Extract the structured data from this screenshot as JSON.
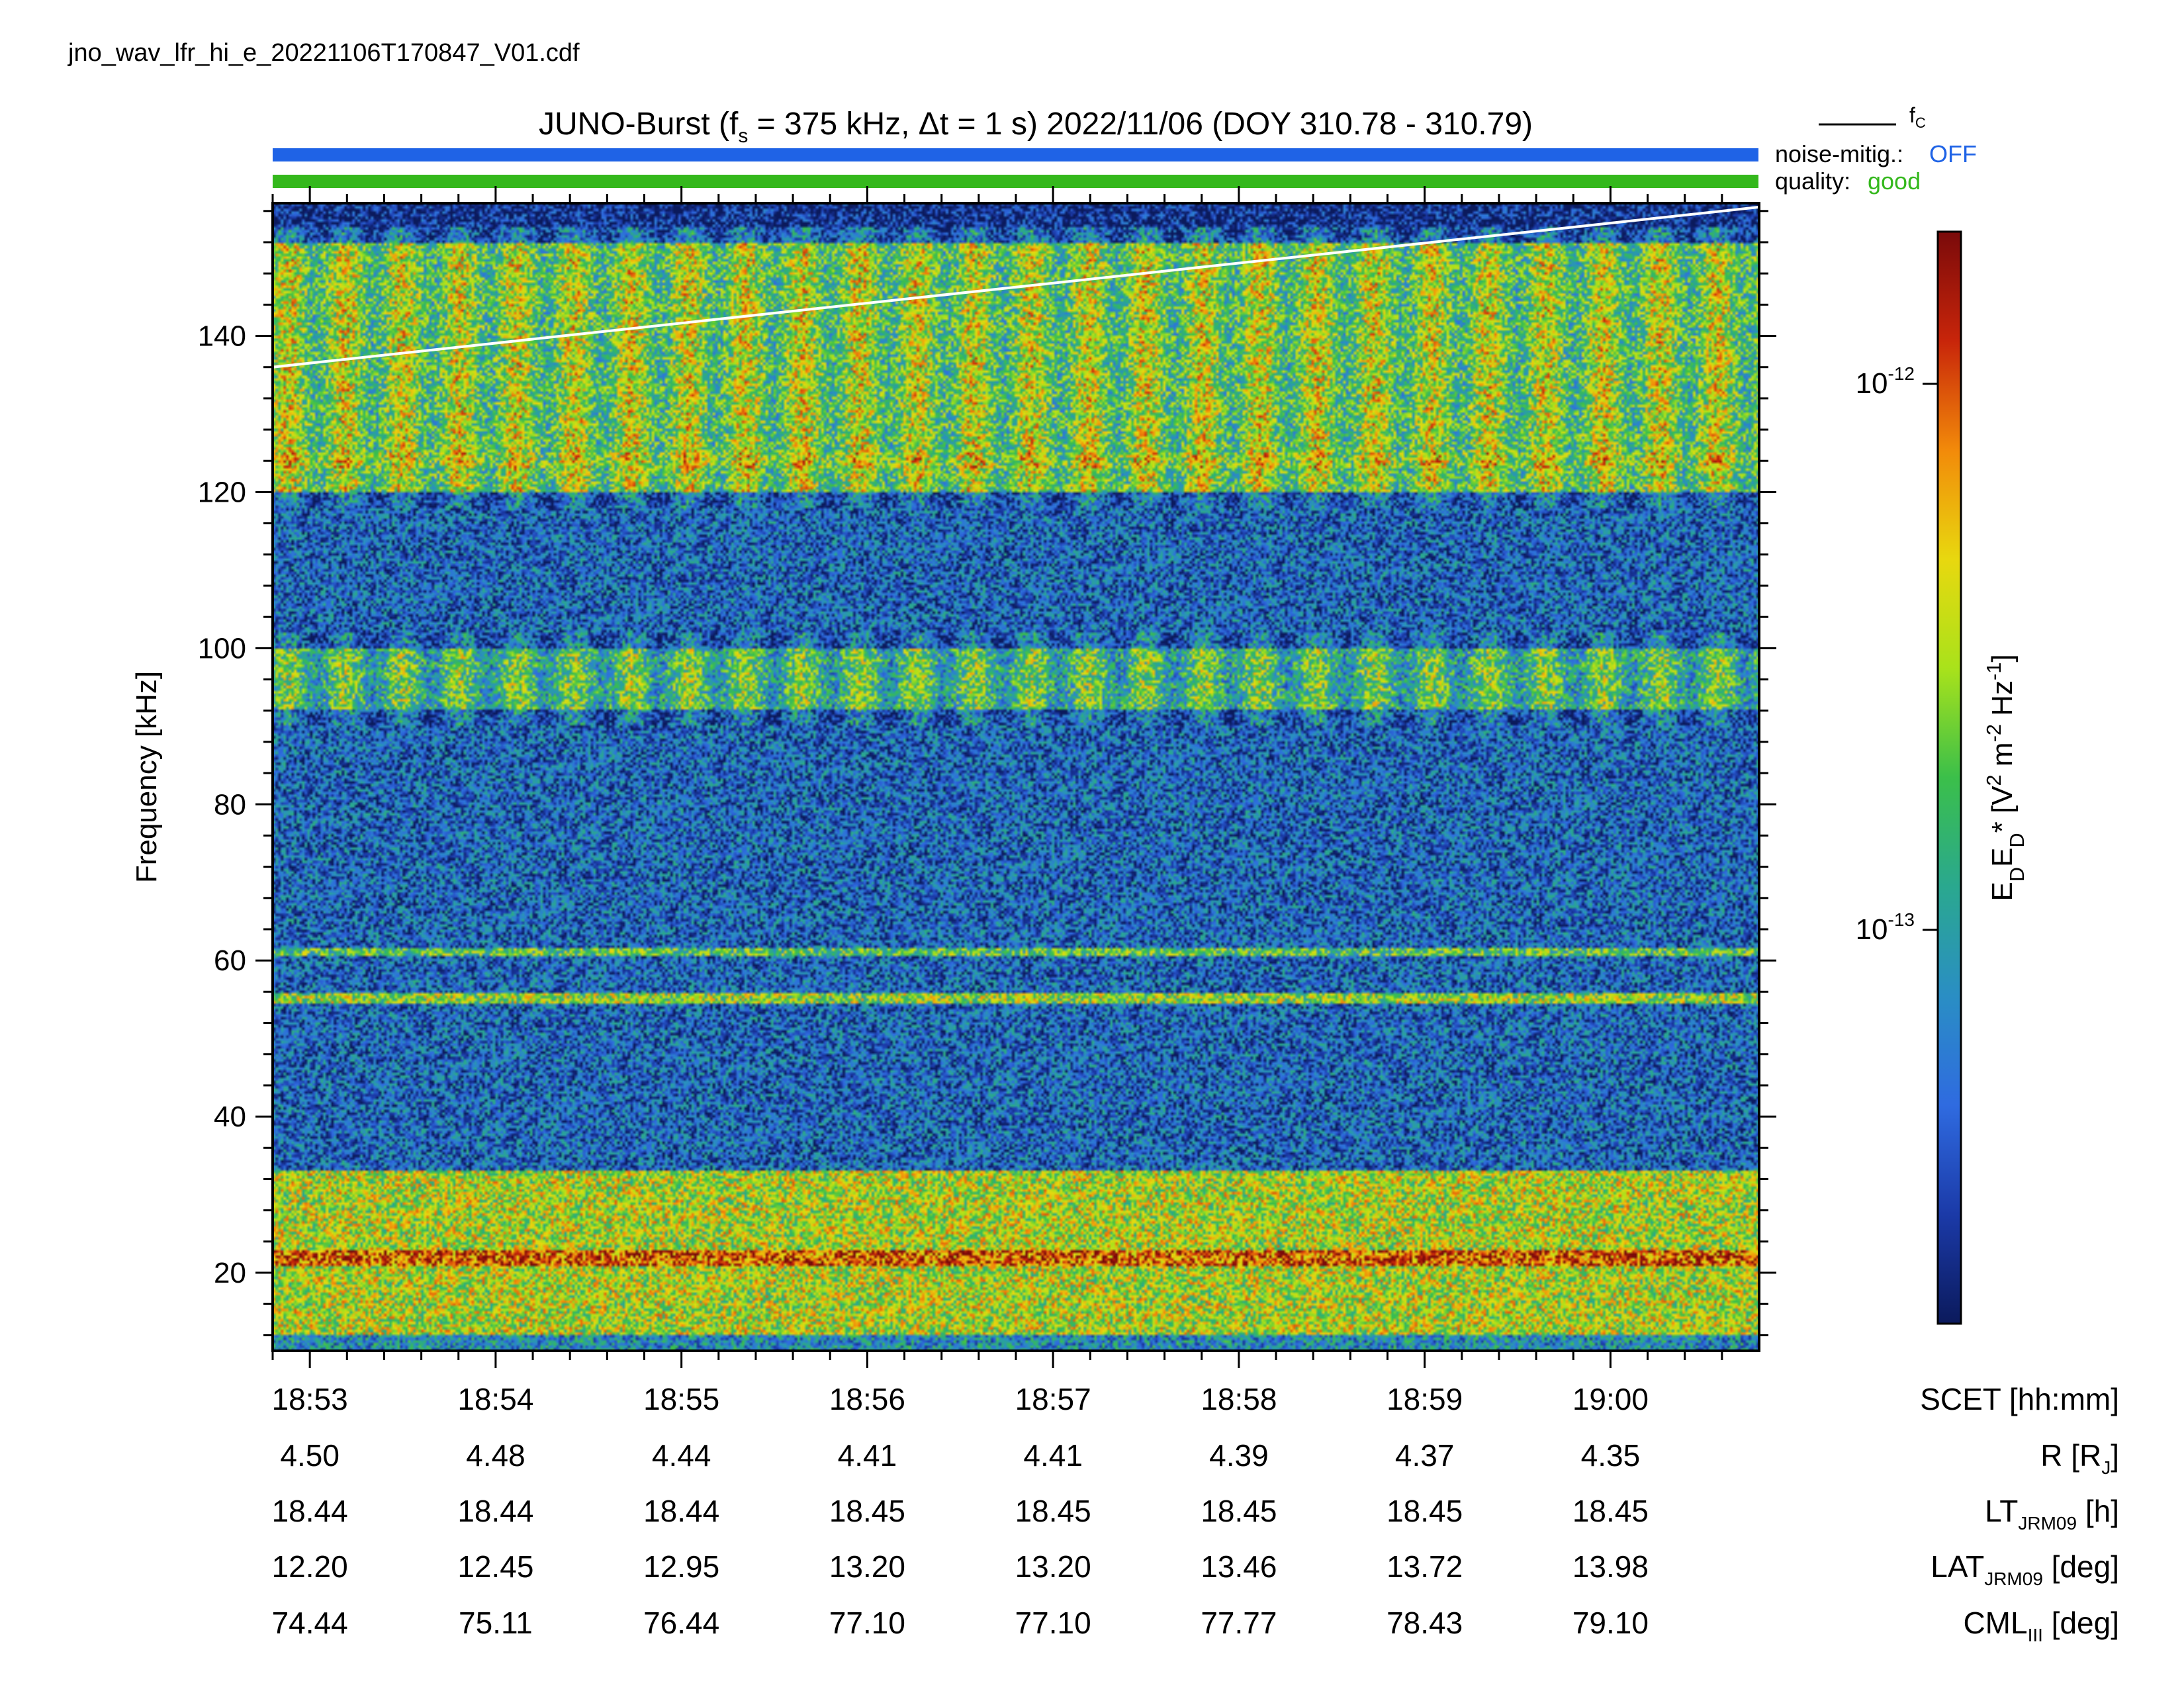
{
  "file_label": "jno_wav_lfr_hi_e_20221106T170847_V01.cdf",
  "chart_data": {
    "type": "heatmap",
    "title": {
      "prefix": "JUNO-Burst (f",
      "sub": "s",
      "middle": " = 375 kHz, Δt = 1 s)  2022/11/06 (DOY 310.78 - 310.79)"
    },
    "ylabel": "Frequency [kHz]",
    "ylim": [
      10,
      157
    ],
    "y_ticks": [
      "20",
      "40",
      "60",
      "80",
      "100",
      "120",
      "140"
    ],
    "y_tick_values": [
      20,
      40,
      60,
      80,
      100,
      120,
      140
    ],
    "x_range_minutes": [
      -0.2,
      7.8
    ],
    "x_ticks": [
      "18:53",
      "18:54",
      "18:55",
      "18:56",
      "18:57",
      "18:58",
      "18:59",
      "19:00"
    ],
    "x_tick_minutes": [
      0,
      1,
      2,
      3,
      4,
      5,
      6,
      7
    ],
    "fc_line": {
      "legend": "f",
      "legend_sub": "C",
      "color": "#ffffff",
      "points": [
        [
          -0.2,
          136.0
        ],
        [
          7.8,
          156.5
        ]
      ]
    },
    "status_bars": [
      {
        "label": "noise-mitig.:",
        "value": "OFF",
        "color": "#1f63e6"
      },
      {
        "label": "quality:",
        "value": "good",
        "color": "#34b81c"
      }
    ],
    "colorbar": {
      "label_html": "E<tspan baseline-shift='sub' font-size='70%'>D</tspan>E<tspan baseline-shift='sub' font-size='70%'>D</tspan>* [V<tspan baseline-shift='super' font-size='70%'>2</tspan> m<tspan baseline-shift='super' font-size='70%'>-2</tspan> Hz<tspan baseline-shift='super' font-size='70%'>-1</tspan>]",
      "label_text": "E_D E_D* [V2 m-2 Hz-1]",
      "scale": "log",
      "range": [
        1.9e-14,
        1.9e-12
      ],
      "ticks": [
        {
          "base": "10",
          "exp": "-12",
          "value": 1e-12
        },
        {
          "base": "10",
          "exp": "-13",
          "value": 1e-13
        }
      ],
      "colors": [
        "#0b1a5c",
        "#1b3aa8",
        "#2f6be0",
        "#2a8ec4",
        "#2aa88f",
        "#3bbf4a",
        "#a9e21b",
        "#e8d80f",
        "#f28a0a",
        "#c8250a",
        "#7a0a0a"
      ]
    },
    "ephemeris": {
      "rows": [
        {
          "label": "SCET [hh:mm]",
          "values": [
            "18:53",
            "18:54",
            "18:55",
            "18:56",
            "18:57",
            "18:58",
            "18:59",
            "19:00"
          ]
        },
        {
          "label": "R [R_J]",
          "values": [
            "4.50",
            "4.48",
            "4.44",
            "4.41",
            "4.41",
            "4.39",
            "4.37",
            "4.35"
          ]
        },
        {
          "label": "LT_JRM09 [h]",
          "values": [
            "18.44",
            "18.44",
            "18.44",
            "18.45",
            "18.45",
            "18.45",
            "18.45",
            "18.45"
          ]
        },
        {
          "label": "LAT_JRM09 [deg]",
          "values": [
            "12.20",
            "12.45",
            "12.95",
            "13.20",
            "13.20",
            "13.46",
            "13.72",
            "13.98"
          ]
        },
        {
          "label": "CML_III [deg]",
          "values": [
            "74.44",
            "75.11",
            "76.44",
            "77.10",
            "77.10",
            "77.77",
            "78.43",
            "79.10"
          ]
        }
      ]
    },
    "spectral_features": [
      {
        "name": "low-frequency band",
        "f_min": 10,
        "f_max": 33,
        "level": 0.62
      },
      {
        "name": "intense line",
        "f_min": 21,
        "f_max": 23,
        "level": 0.85
      },
      {
        "name": "line 55 kHz",
        "f_min": 54.5,
        "f_max": 56,
        "level": 0.58
      },
      {
        "name": "line 61 kHz",
        "f_min": 60.5,
        "f_max": 61.5,
        "level": 0.5
      },
      {
        "name": "band 95 kHz",
        "f_min": 92,
        "f_max": 100,
        "level": 0.45
      },
      {
        "name": "line 124 kHz",
        "f_min": 123,
        "f_max": 125,
        "level": 0.62
      },
      {
        "name": "upper band",
        "f_min": 120,
        "f_max": 152,
        "level": 0.55
      }
    ]
  }
}
